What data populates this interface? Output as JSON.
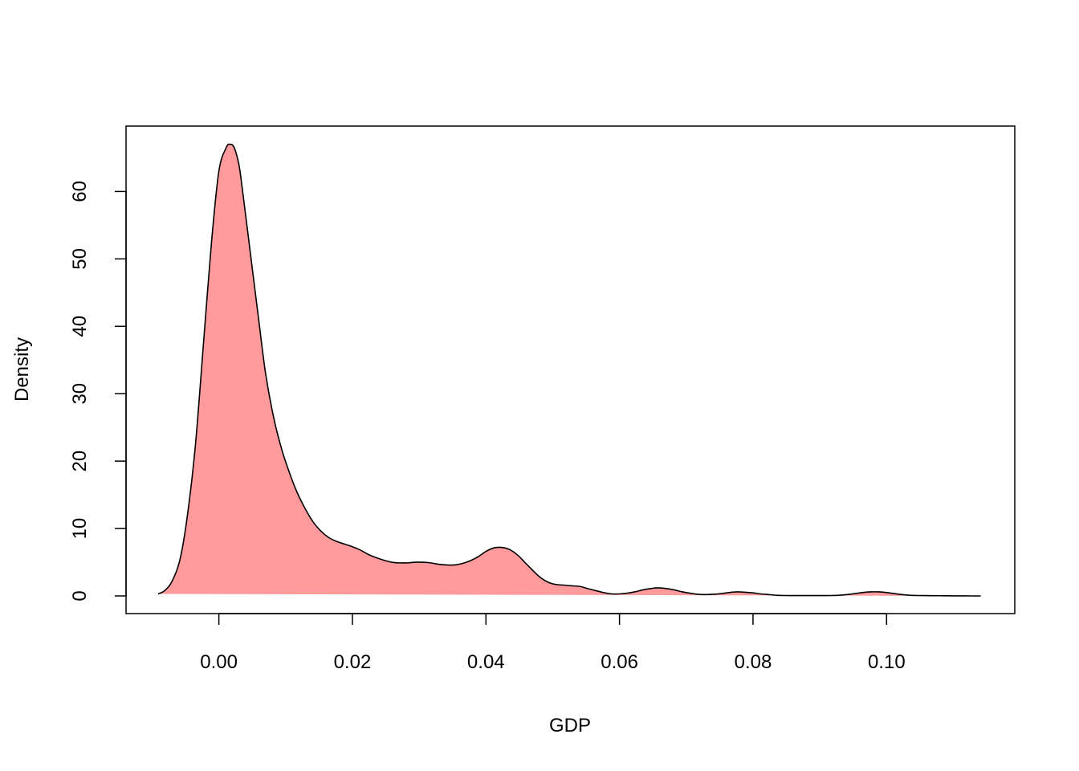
{
  "chart_data": {
    "type": "area",
    "title": "",
    "xlabel": "GDP",
    "ylabel": "Density",
    "xlim": [
      -0.0139,
      0.1192
    ],
    "ylim": [
      -2.62,
      69.7
    ],
    "x_ticks": [
      0.0,
      0.02,
      0.04,
      0.06,
      0.08,
      0.1
    ],
    "x_tick_labels": [
      "0.00",
      "0.02",
      "0.04",
      "0.06",
      "0.08",
      "0.10"
    ],
    "y_ticks": [
      0,
      10,
      20,
      30,
      40,
      50,
      60
    ],
    "y_tick_labels": [
      "0",
      "10",
      "20",
      "30",
      "40",
      "50",
      "60"
    ],
    "grid": false,
    "fill_color": "#ff9b9d",
    "line_color": "#000000",
    "series": [
      {
        "x": [
          -0.0091,
          -0.0081,
          -0.007,
          -0.0058,
          -0.0047,
          -0.0035,
          -0.0023,
          -0.0011,
          0.0,
          0.0011,
          0.0017,
          0.0023,
          0.003,
          0.0035,
          0.0047,
          0.0059,
          0.007,
          0.0082,
          0.0094,
          0.0106,
          0.0117,
          0.0129,
          0.0141,
          0.0153,
          0.0164,
          0.0176,
          0.0188,
          0.02,
          0.0212,
          0.0223,
          0.0235,
          0.0247,
          0.0259,
          0.027,
          0.0282,
          0.0294,
          0.0306,
          0.0317,
          0.0329,
          0.0341,
          0.0353,
          0.0364,
          0.0376,
          0.0388,
          0.04,
          0.0411,
          0.0423,
          0.0435,
          0.0447,
          0.0458,
          0.047,
          0.0482,
          0.0494,
          0.0505,
          0.0517,
          0.0529,
          0.0541,
          0.0552,
          0.0564,
          0.0576,
          0.0588,
          0.06,
          0.0611,
          0.0623,
          0.0635,
          0.0647,
          0.0658,
          0.067,
          0.0682,
          0.0694,
          0.0706,
          0.0717,
          0.0729,
          0.0741,
          0.0753,
          0.0764,
          0.0776,
          0.0788,
          0.08,
          0.0811,
          0.0823,
          0.0835,
          0.0847,
          0.0858,
          0.087,
          0.0882,
          0.0894,
          0.0906,
          0.0917,
          0.0929,
          0.0941,
          0.0953,
          0.0964,
          0.0976,
          0.0988,
          0.1,
          0.1011,
          0.1023,
          0.1035,
          0.1047,
          0.1058,
          0.107,
          0.1082,
          0.1094,
          0.1105,
          0.1117,
          0.1129,
          0.1141
        ],
        "y": [
          0.3,
          0.8,
          2.2,
          5.5,
          12.0,
          22.5,
          37.5,
          52.5,
          63.0,
          66.5,
          67.0,
          66.5,
          64.0,
          60.5,
          51.0,
          41.5,
          33.0,
          26.5,
          21.8,
          18.2,
          15.4,
          13.0,
          11.0,
          9.6,
          8.7,
          8.1,
          7.7,
          7.3,
          6.8,
          6.2,
          5.7,
          5.3,
          5.0,
          4.9,
          4.9,
          5.0,
          5.0,
          4.9,
          4.7,
          4.6,
          4.6,
          4.8,
          5.2,
          5.8,
          6.6,
          7.1,
          7.2,
          6.9,
          6.1,
          5.0,
          3.8,
          2.7,
          2.0,
          1.7,
          1.6,
          1.5,
          1.4,
          1.1,
          0.8,
          0.5,
          0.3,
          0.3,
          0.4,
          0.6,
          0.9,
          1.1,
          1.2,
          1.1,
          0.9,
          0.6,
          0.4,
          0.25,
          0.2,
          0.25,
          0.35,
          0.5,
          0.6,
          0.55,
          0.45,
          0.3,
          0.2,
          0.1,
          0.06,
          0.05,
          0.05,
          0.05,
          0.05,
          0.05,
          0.06,
          0.1,
          0.2,
          0.35,
          0.5,
          0.6,
          0.6,
          0.5,
          0.35,
          0.2,
          0.1,
          0.06,
          0.05,
          0.04,
          0.03,
          0.02,
          0.01,
          0.01,
          0.0,
          0.0
        ],
        "fill_baseline": [
          0.3,
          0.0
        ]
      }
    ]
  }
}
